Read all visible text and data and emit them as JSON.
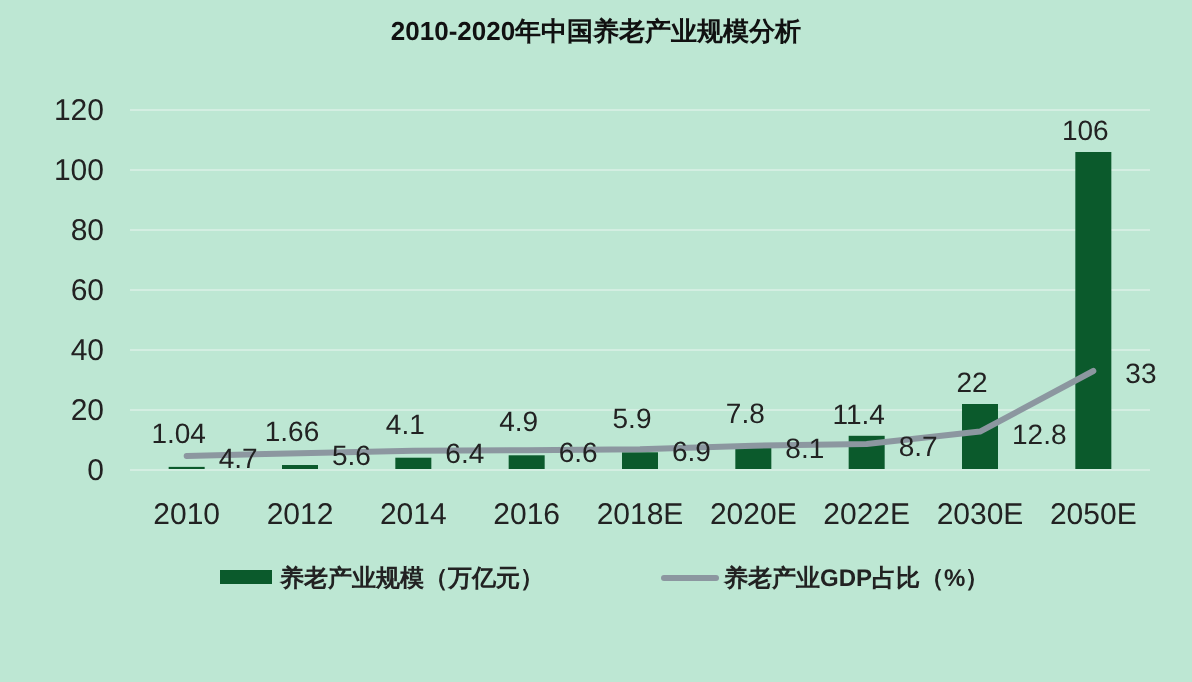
{
  "chart_data": {
    "type": "bar",
    "title": "2010-2020年中国养老产业规模分析",
    "categories": [
      "2010",
      "2012",
      "2014",
      "2016",
      "2018E",
      "2020E",
      "2022E",
      "2030E",
      "2050E"
    ],
    "series": [
      {
        "name": "养老产业规模（万亿元）",
        "color": "#0b5a2c",
        "values": [
          1.04,
          1.66,
          4.1,
          4.9,
          5.9,
          7.8,
          11.4,
          22,
          106
        ]
      },
      {
        "name": "养老产业GDP占比（%）",
        "type": "line",
        "color": "#8c97a0",
        "values": [
          4.7,
          5.6,
          6.4,
          6.6,
          6.9,
          8.1,
          8.7,
          12.8,
          33
        ]
      }
    ],
    "ylim": [
      0,
      120
    ],
    "yticks": [
      0,
      20,
      40,
      60,
      80,
      100,
      120
    ],
    "grid": "y",
    "legend": "bottom",
    "data_labels": true
  }
}
